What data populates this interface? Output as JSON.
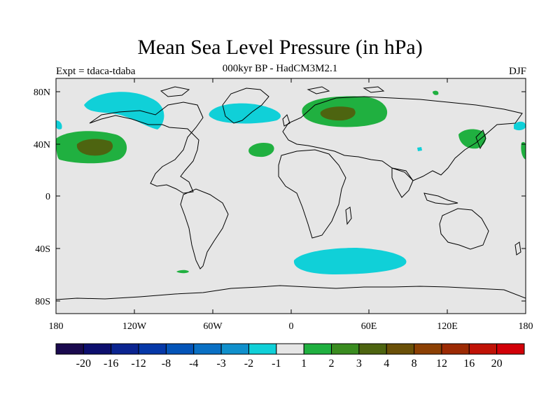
{
  "title": "Mean Sea Level Pressure (in hPa)",
  "subtitle": "000kyr BP - HadCM3M2.1",
  "experiment": "Expt = tdaca-tdaba",
  "season": "DJF",
  "y_axis_labels": [
    "80N",
    "40N",
    "0",
    "40S",
    "80S"
  ],
  "x_axis_labels": [
    "180",
    "120W",
    "60W",
    "0",
    "60E",
    "120E",
    "180"
  ],
  "colorbar": {
    "colors": [
      "#1a0a4e",
      "#0d0f6e",
      "#0b2490",
      "#0538a8",
      "#0454b8",
      "#0a70c4",
      "#1090cc",
      "#10d0d8",
      "#e6e6e6",
      "#20b040",
      "#3a8c20",
      "#4d6410",
      "#6a5008",
      "#8c4004",
      "#9c2a04",
      "#c01206",
      "#d20008"
    ],
    "labels": [
      "-20",
      "-16",
      "-12",
      "-8",
      "-4",
      "-3",
      "-2",
      "-1",
      "1",
      "2",
      "3",
      "4",
      "8",
      "12",
      "16",
      "20"
    ]
  },
  "colors": {
    "background": "#e6e6e6",
    "negative_light": "#10d0d8",
    "positive_light": "#20b040",
    "positive_medium": "#4d6410"
  }
}
